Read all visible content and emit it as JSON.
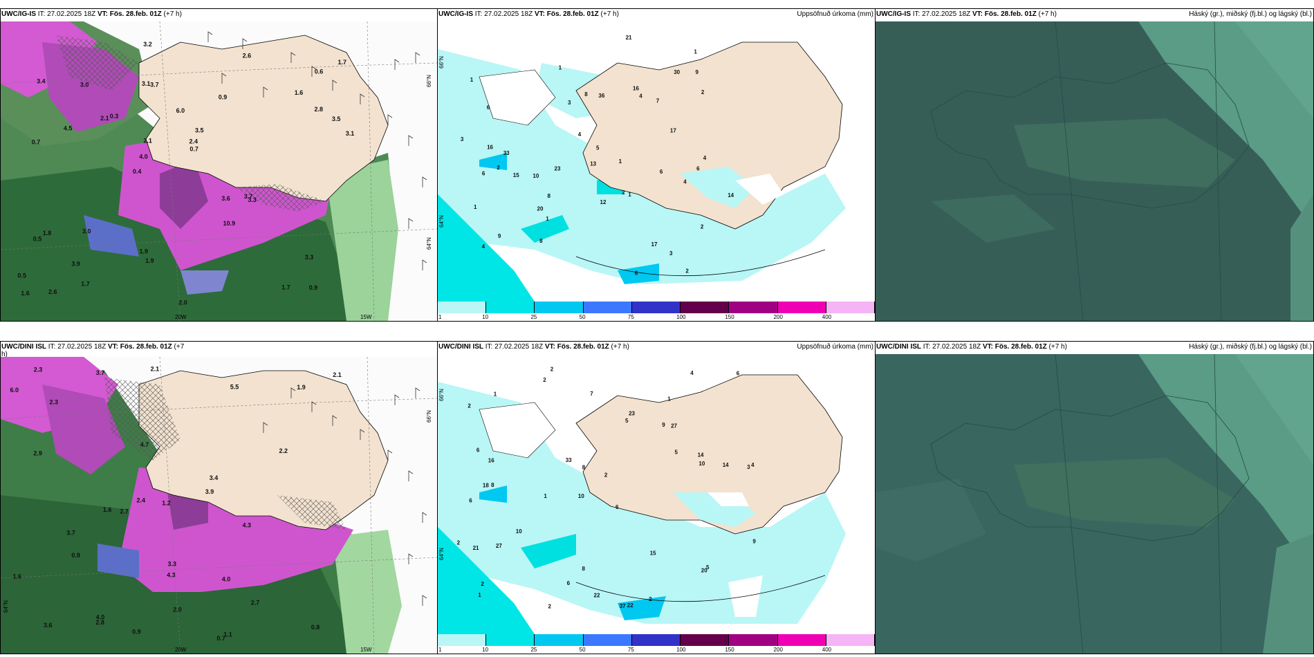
{
  "panels": {
    "top_left": {
      "title_model": "UWC/IG-IS",
      "title_it": " IT: 27.02.2025 18Z ",
      "title_vt": "VT: Fös. 28.feb. 01Z",
      "title_lead": " (+7 h)"
    },
    "top_mid": {
      "title_model": "UWC/IG-IS",
      "title_it": " IT: 27.02.2025 18Z ",
      "title_vt": "VT: Fös. 28.feb. 01Z",
      "title_lead": " (+7 h)",
      "right_label": "Uppsöfnuð úrkoma (mm)"
    },
    "top_right": {
      "title_model": "UWC/IG-IS",
      "title_it": " IT: 27.02.2025 18Z ",
      "title_vt": "VT: Fös. 28.feb. 01Z",
      "title_lead": " (+7 h)",
      "right_label": "Háský (gr.), miðský (fj.bl.) og lágský (bl.)"
    },
    "bot_left": {
      "title_model": "UWC/DINI ISL",
      "title_it": " IT: 27.02.2025 18Z ",
      "title_vt": "VT: Fös. 28.feb. 01Z",
      "title_lead": " (+7 h)"
    },
    "bot_mid": {
      "title_model": "UWC/DINI ISL",
      "title_it": " IT: 27.02.2025 18Z ",
      "title_vt": "VT: Fös. 28.feb. 01Z",
      "title_lead": " (+7 h)",
      "right_label": "Uppsöfnuð úrkoma (mm)"
    },
    "bot_right": {
      "title_model": "UWC/DINI ISL",
      "title_it": " IT: 27.02.2025 18Z ",
      "title_vt": "VT: Fös. 28.feb. 01Z",
      "title_lead": " (+7 h)",
      "right_label": "Háský (gr.), miðský (fj.bl.) og lágský (bl.)"
    }
  },
  "grid_labels": {
    "lat66": "66°N",
    "lat64": "64°N",
    "lon20": "20W",
    "lon15": "15W"
  },
  "colorbar": {
    "ticks": [
      "1",
      "10",
      "25",
      "50",
      "75",
      "100",
      "150",
      "200",
      "400"
    ],
    "colors": [
      "#b9f6f6",
      "#00e6e6",
      "#00c8f0",
      "#3c78ff",
      "#3232c8",
      "#64004b",
      "#a00082",
      "#f000b4",
      "#f5b4f5"
    ]
  },
  "precip_labels_top": [
    "2",
    "2",
    "2",
    "1",
    "2",
    "6",
    "9",
    "10",
    "7",
    "8",
    "4",
    "3",
    "1",
    "1",
    "1",
    "1",
    "6",
    "5",
    "3",
    "4",
    "1",
    "36",
    "17",
    "14",
    "4",
    "16",
    "15",
    "13",
    "4",
    "9",
    "1",
    "6",
    "20",
    "16",
    "3",
    "4",
    "6",
    "17",
    "30",
    "6",
    "8",
    "12",
    "8",
    "21",
    "23",
    "33",
    "2"
  ],
  "precip_labels_bot": [
    "2",
    "1",
    "3",
    "10",
    "6",
    "8",
    "2",
    "9",
    "6",
    "5",
    "2",
    "1",
    "2",
    "1",
    "37",
    "22",
    "8",
    "4",
    "5",
    "10",
    "16",
    "18",
    "4",
    "14",
    "2",
    "6",
    "8",
    "10",
    "5",
    "21",
    "20",
    "23",
    "27",
    "33",
    "15",
    "9",
    "14",
    "6",
    "6",
    "7",
    "2",
    "2",
    "2",
    "1",
    "22",
    "27"
  ],
  "temp_labels_top": [
    "0.9",
    "0.7",
    "0.6",
    "0.4",
    "0.9",
    "2.6",
    "3.1",
    "6.0",
    "1.8",
    "0.3",
    "0.5",
    "3.9",
    "3.7",
    "3.5",
    "3.3",
    "3.4",
    "3.2",
    "3.1",
    "3.6",
    "2.8",
    "4.0",
    "1.9",
    "2.1",
    "3.0",
    "2.6",
    "3.0",
    "1.7",
    "3.3",
    "3.7",
    "2.0",
    "2.1",
    "4.5",
    "10.9",
    "1.7",
    "3.5",
    "2.4",
    "1.6",
    "1.9",
    "0.7",
    "0.5",
    "1.6",
    "1.7"
  ],
  "temp_labels_bot": [
    "0.9",
    "0.7",
    "4.0",
    "2.7",
    "3.7",
    "2.3",
    "1.6",
    "0.8",
    "2.1",
    "4.7",
    "1.9",
    "2.0",
    "2.4",
    "4.3",
    "5.5",
    "3.9",
    "2.9",
    "2.8",
    "2.7",
    "6.0",
    "4.0",
    "2.1",
    "3.4",
    "3.6",
    "2.2",
    "3.7",
    "1.6",
    "0.9",
    "2.3",
    "4.3",
    "1.2",
    "1.1",
    "3.3"
  ]
}
